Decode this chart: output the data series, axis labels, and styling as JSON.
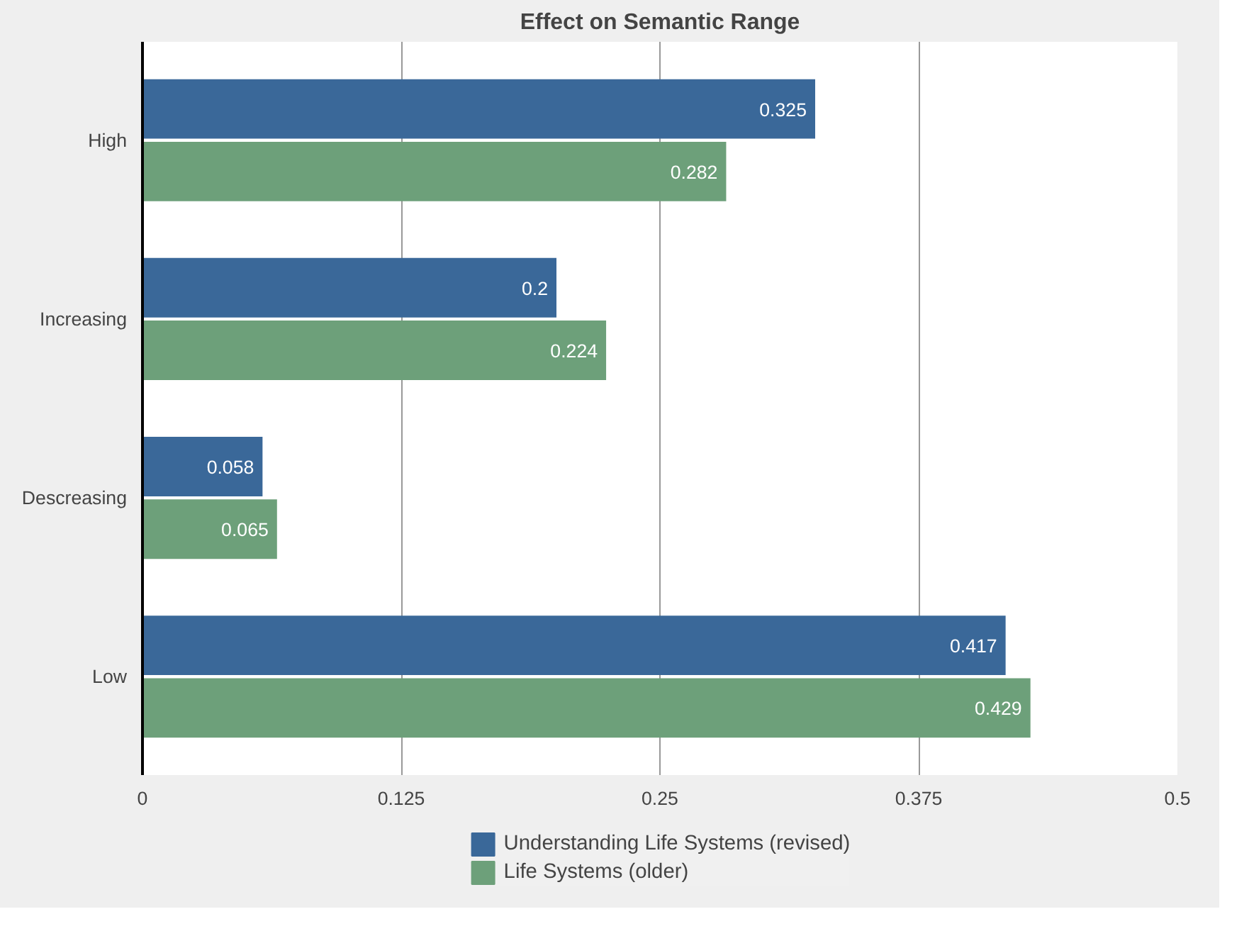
{
  "chart_data": {
    "type": "bar",
    "orientation": "horizontal",
    "title": "Effect on Semantic Range",
    "categories": [
      "High",
      "Increasing",
      "Descreasing",
      "Low"
    ],
    "series": [
      {
        "name": "Understanding Life Systems (revised)",
        "color": "#3a6899",
        "values": [
          0.325,
          0.2,
          0.058,
          0.417
        ]
      },
      {
        "name": "Life Systems (older)",
        "color": "#6da07a",
        "values": [
          0.282,
          0.224,
          0.065,
          0.429
        ]
      }
    ],
    "xlim": [
      0,
      0.5
    ],
    "xticks": [
      0,
      0.125,
      0.25,
      0.375,
      0.5
    ],
    "grid": "x",
    "legend": "bottom",
    "data_labels": true
  }
}
